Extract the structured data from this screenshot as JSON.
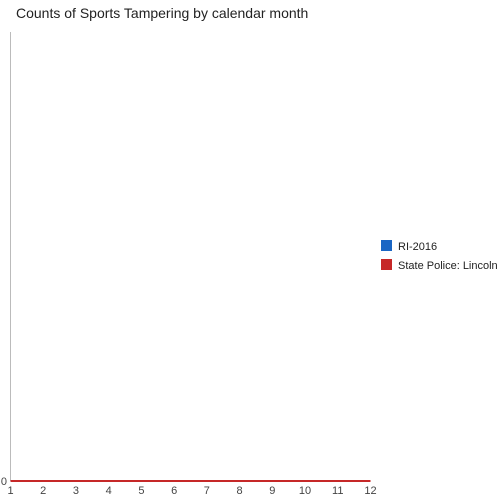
{
  "chart_data": {
    "type": "line",
    "title": "Counts of Sports Tampering by calendar month",
    "xlabel": "",
    "ylabel": "",
    "x": [
      1,
      2,
      3,
      4,
      5,
      6,
      7,
      8,
      9,
      10,
      11,
      12
    ],
    "xticks": [
      "1",
      "2",
      "3",
      "4",
      "5",
      "6",
      "7",
      "8",
      "9",
      "10",
      "11",
      "12"
    ],
    "xlim": [
      1,
      12
    ],
    "yticks": [
      "0"
    ],
    "ylim": [
      0,
      1
    ],
    "grid": false,
    "legend_position": "right",
    "series": [
      {
        "name": "RI-2016",
        "color": "#1a66c4",
        "values": [
          0,
          0,
          0,
          0,
          0,
          0,
          0,
          0,
          0,
          0,
          0,
          0
        ]
      },
      {
        "name": "State Police: Lincoln",
        "color": "#c62828",
        "values": [
          0,
          0,
          0,
          0,
          0,
          0,
          0,
          0,
          0,
          0,
          0,
          0
        ]
      }
    ]
  }
}
